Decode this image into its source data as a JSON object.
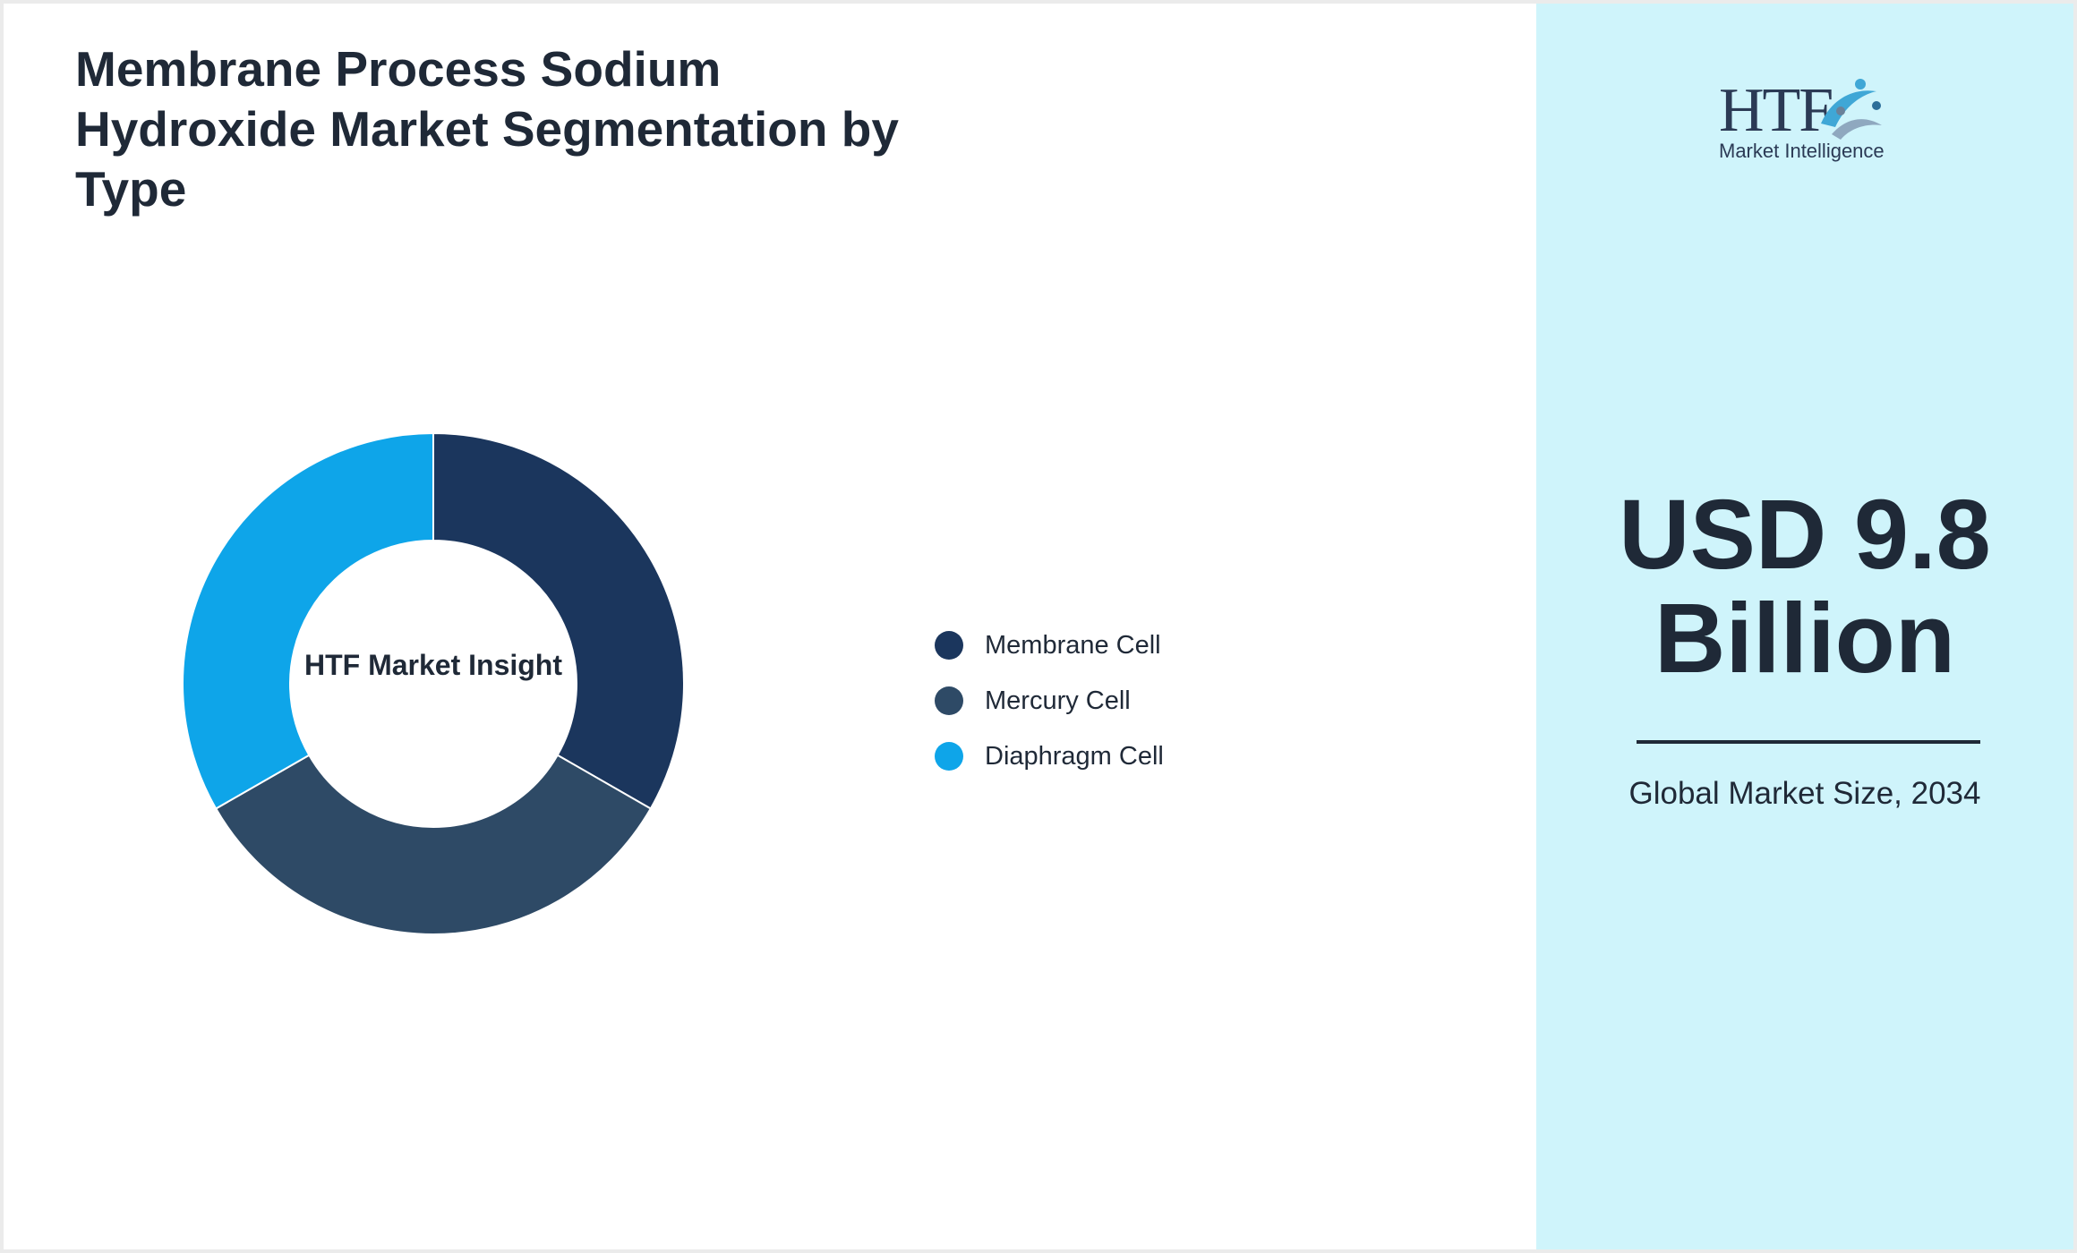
{
  "title": "Membrane Process Sodium Hydroxide Market Segmentation by Type",
  "chart_data": {
    "type": "pie",
    "title": "Membrane Process Sodium Hydroxide Market Segmentation by Type",
    "center_label": "HTF Market Insight",
    "categories": [
      "Membrane Cell",
      "Mercury Cell",
      "Diaphragm Cell"
    ],
    "values": [
      33.3,
      33.4,
      33.3
    ],
    "colors": [
      "#1b365d",
      "#2e4a66",
      "#0ea5e9"
    ],
    "legend_position": "right",
    "grid": false
  },
  "legend": {
    "items": [
      {
        "label": "Membrane Cell",
        "color": "#1b365d"
      },
      {
        "label": "Mercury Cell",
        "color": "#2e4a66"
      },
      {
        "label": "Diaphragm Cell",
        "color": "#0ea5e9"
      }
    ]
  },
  "logo": {
    "letters": "HTF",
    "subtitle": "Market Intelligence"
  },
  "summary": {
    "value": "USD 9.8 Billion",
    "caption": "Global Market Size, 2034"
  },
  "colors": {
    "accent_panel": "#cff4fb",
    "text": "#1f2937"
  }
}
